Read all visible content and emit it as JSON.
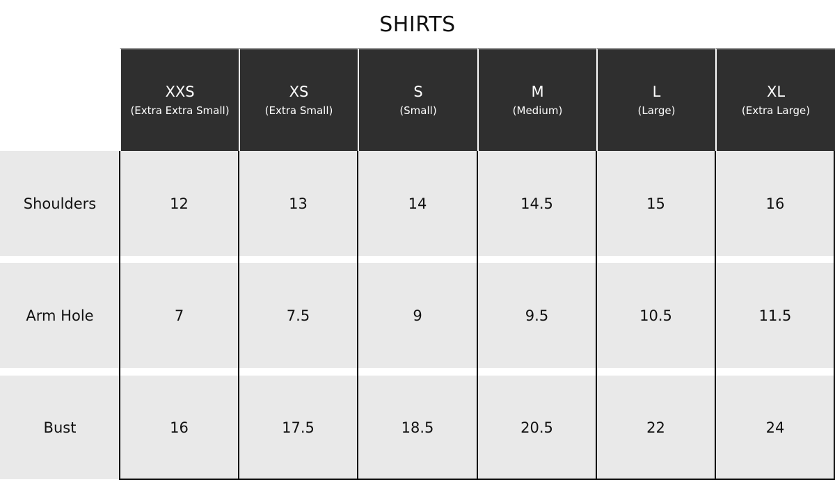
{
  "title": "SHIRTS",
  "sizes": [
    {
      "code": "XXS",
      "full": "(Extra Extra Small)"
    },
    {
      "code": "XS",
      "full": "(Extra Small)"
    },
    {
      "code": "S",
      "full": "(Small)"
    },
    {
      "code": "M",
      "full": "(Medium)"
    },
    {
      "code": "L",
      "full": "(Large)"
    },
    {
      "code": "XL",
      "full": "(Extra Large)"
    }
  ],
  "rows": [
    {
      "label": "Shoulders",
      "values": [
        "12",
        "13",
        "14",
        "14.5",
        "15",
        "16"
      ]
    },
    {
      "label": "Arm Hole",
      "values": [
        "7",
        "7.5",
        "9",
        "9.5",
        "10.5",
        "11.5"
      ]
    },
    {
      "label": "Bust",
      "values": [
        "16",
        "17.5",
        "18.5",
        "20.5",
        "22",
        "24"
      ]
    }
  ]
}
